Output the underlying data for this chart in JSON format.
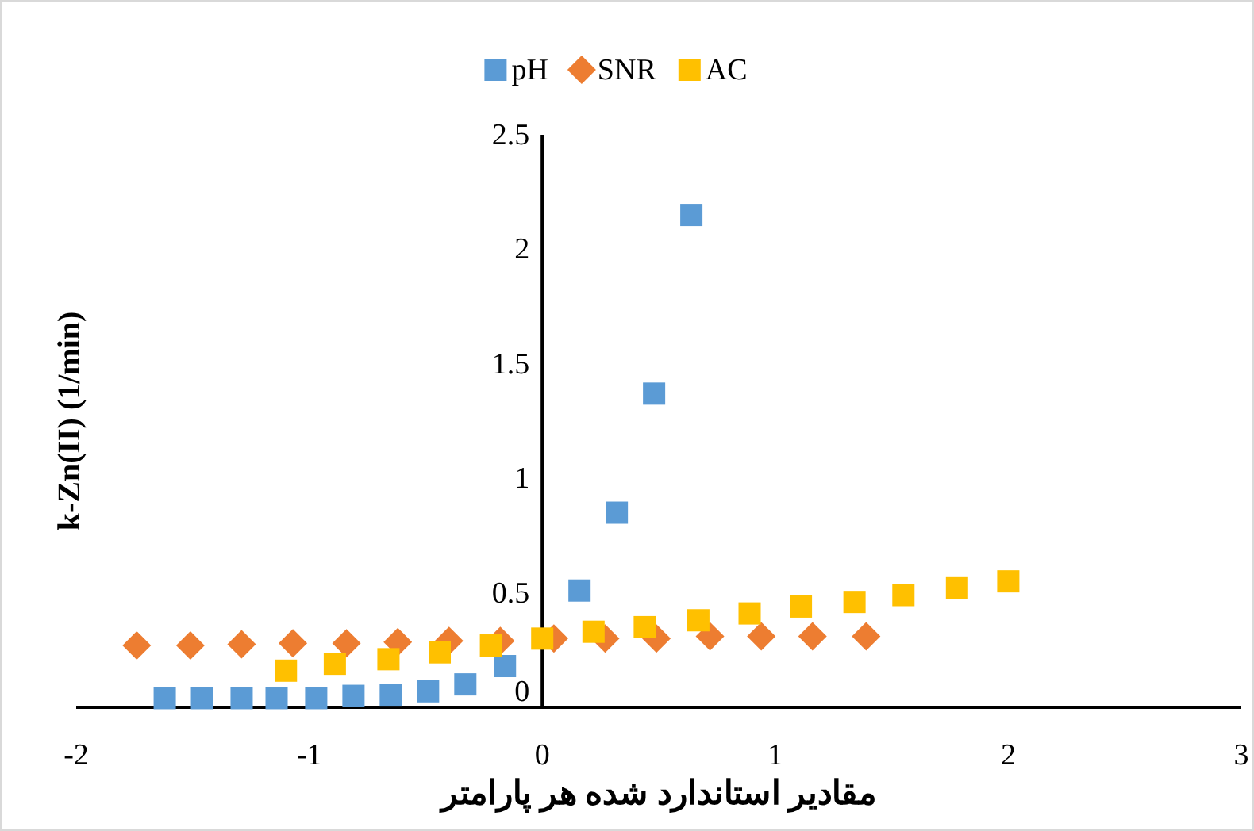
{
  "chart_data": {
    "type": "scatter",
    "xlabel": "مقادیر استاندارد شده هر پارامتر",
    "ylabel": "k-Zn(II) (1/min)",
    "xlim": [
      -2,
      3
    ],
    "xticks": [
      -2,
      -1,
      0,
      1,
      2,
      3
    ],
    "ylim": [
      0,
      2.5
    ],
    "yticks": [
      0,
      0.5,
      1,
      1.5,
      2,
      2.5
    ],
    "grid": false,
    "legend": "top",
    "series": [
      {
        "name": "pH",
        "color": "#5b9bd5",
        "marker": "square",
        "x": [
          -1.62,
          -1.46,
          -1.29,
          -1.14,
          -0.97,
          -0.81,
          -0.65,
          -0.49,
          -0.33,
          -0.16,
          0.16,
          0.32,
          0.48,
          0.64
        ],
        "values": [
          0.04,
          0.04,
          0.04,
          0.04,
          0.04,
          0.05,
          0.055,
          0.07,
          0.1,
          0.18,
          0.51,
          0.85,
          1.37,
          2.15
        ]
      },
      {
        "name": "SNR",
        "color": "#ed7d31",
        "marker": "diamond",
        "x": [
          -1.74,
          -1.51,
          -1.29,
          -1.07,
          -0.84,
          -0.62,
          -0.4,
          -0.18,
          0.05,
          0.27,
          0.49,
          0.72,
          0.94,
          1.16,
          1.39
        ],
        "values": [
          0.27,
          0.27,
          0.275,
          0.28,
          0.28,
          0.285,
          0.29,
          0.29,
          0.3,
          0.3,
          0.3,
          0.31,
          0.31,
          0.31,
          0.31
        ]
      },
      {
        "name": "AC",
        "color": "#ffc000",
        "marker": "square",
        "x": [
          -1.1,
          -0.89,
          -0.66,
          -0.44,
          -0.22,
          0,
          0.22,
          0.44,
          0.67,
          0.89,
          1.11,
          1.34,
          1.55,
          1.78,
          2.0
        ],
        "values": [
          0.16,
          0.19,
          0.21,
          0.24,
          0.27,
          0.3,
          0.33,
          0.35,
          0.38,
          0.41,
          0.44,
          0.46,
          0.49,
          0.52,
          0.55
        ]
      }
    ]
  }
}
